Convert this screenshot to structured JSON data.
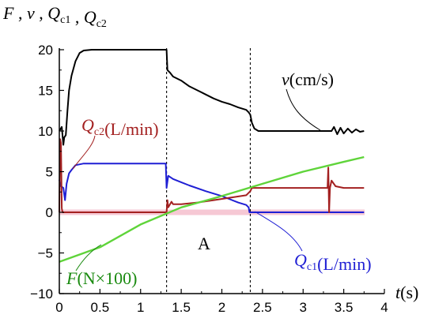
{
  "chart_data": {
    "type": "line",
    "ylabel": {
      "parts": [
        "F",
        " , ",
        "v",
        " , ",
        "Q",
        "c1",
        " , ",
        "Q",
        "c2"
      ]
    },
    "xlabel": {
      "var": "t",
      "unit": "s"
    },
    "xlim": [
      0,
      4
    ],
    "ylim": [
      -10,
      20
    ],
    "xticks": [
      "0",
      "0.5",
      "1",
      "1.5",
      "2",
      "2.5",
      "3",
      "3.5",
      "4"
    ],
    "yticks": [
      "−10",
      "−5",
      "0",
      "5",
      "10",
      "15",
      "20"
    ],
    "xtick_values": [
      0,
      0.5,
      1,
      1.5,
      2,
      2.5,
      3,
      3.5,
      4
    ],
    "ytick_values": [
      -10,
      -5,
      0,
      5,
      10,
      15,
      20
    ],
    "vlines": [
      1.32,
      2.35
    ],
    "annotation": "A",
    "series": [
      {
        "key": "v",
        "color": "#000000",
        "label": {
          "var": "v",
          "sub": "",
          "unit": "cm/s"
        },
        "x": [
          0,
          0.03,
          0.05,
          0.06,
          0.08,
          0.1,
          0.12,
          0.15,
          0.2,
          0.25,
          0.3,
          0.4,
          0.5,
          0.8,
          1.0,
          1.2,
          1.3,
          1.32,
          1.33,
          1.36,
          1.4,
          1.5,
          1.6,
          1.7,
          1.8,
          1.9,
          2.0,
          2.1,
          2.2,
          2.3,
          2.33,
          2.35,
          2.37,
          2.4,
          2.45,
          2.6,
          2.8,
          3.0,
          3.2,
          3.35,
          3.38,
          3.42,
          3.46,
          3.5,
          3.55,
          3.6,
          3.65,
          3.7,
          3.75
        ],
        "y": [
          10,
          10.5,
          8.3,
          9.2,
          9.5,
          12.5,
          15,
          16.8,
          18.6,
          19.6,
          19.9,
          20,
          20,
          20,
          20,
          20,
          20,
          20,
          17.5,
          17.2,
          16.7,
          16.2,
          15.5,
          15,
          14.5,
          14,
          13.6,
          13.3,
          12.9,
          12.6,
          12.3,
          12,
          11,
          10.3,
          10,
          10,
          10,
          10,
          10,
          10,
          10.5,
          9.6,
          10.4,
          9.7,
          10.3,
          9.8,
          10.2,
          9.9,
          10
        ]
      },
      {
        "key": "qc1",
        "color": "#1f1fd4",
        "label": {
          "var": "Q",
          "sub": "c1",
          "unit": "L/min"
        },
        "x": [
          0,
          0.02,
          0.05,
          0.07,
          0.09,
          0.12,
          0.15,
          0.2,
          0.3,
          0.4,
          0.6,
          0.8,
          1.0,
          1.2,
          1.31,
          1.32,
          1.34,
          1.4,
          1.5,
          1.6,
          1.8,
          2.0,
          2.1,
          2.2,
          2.3,
          2.33,
          2.34,
          2.36,
          2.5,
          3.0,
          3.75
        ],
        "y": [
          4,
          3.2,
          3,
          1.5,
          3.5,
          4.8,
          5.2,
          5.8,
          6,
          6,
          6,
          6,
          6,
          6,
          6,
          3,
          4.5,
          4.1,
          3.7,
          3.3,
          2.6,
          2,
          1.6,
          1.2,
          0.9,
          0.6,
          0,
          0,
          0,
          0,
          0
        ]
      },
      {
        "key": "qc2",
        "color": "#a32020",
        "label": {
          "var": "Q",
          "sub": "c2",
          "unit": "L/min"
        },
        "x": [
          0,
          0.01,
          0.02,
          0.03,
          0.04,
          0.05,
          0.5,
          1.0,
          1.3,
          1.32,
          1.33,
          1.34,
          1.38,
          1.4,
          1.5,
          1.7,
          1.9,
          2.1,
          2.3,
          2.35,
          2.37,
          2.5,
          3.0,
          3.3,
          3.31,
          3.32,
          3.33,
          3.35,
          3.4,
          3.5,
          3.75
        ],
        "y": [
          0,
          9,
          8.5,
          0.5,
          0,
          0,
          0,
          0,
          0,
          0,
          1.5,
          0.6,
          1.3,
          1.0,
          1.0,
          1.2,
          1.5,
          1.8,
          2.1,
          2.6,
          3.0,
          3.0,
          3.0,
          3.0,
          5.5,
          0,
          3,
          3.9,
          3.2,
          3,
          3
        ]
      },
      {
        "key": "F",
        "color": "#5fd43a",
        "label": {
          "var": "F",
          "sub": "",
          "unit": "N×100"
        },
        "x": [
          0,
          0.5,
          1.0,
          1.5,
          2.0,
          2.5,
          3.0,
          3.5,
          3.75
        ],
        "y": [
          -6.1,
          -4.3,
          -1.5,
          0.6,
          2.0,
          3.5,
          5.0,
          6.2,
          6.8
        ]
      }
    ]
  }
}
